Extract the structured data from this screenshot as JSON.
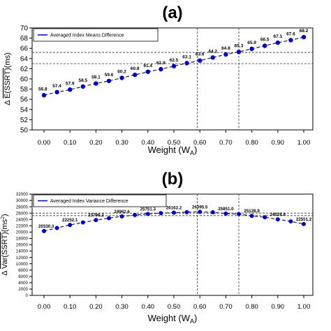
{
  "chart_data": [
    {
      "panel_label": "(a)",
      "type": "line",
      "legend": "Averaged Index Means Difference",
      "legend_placement": "top-left",
      "ylabel_parts": [
        "Δ",
        "E(SSRT)",
        "(ms)"
      ],
      "xlabel_parts": [
        "Weight (W",
        "A",
        ")"
      ],
      "xlim": [
        0,
        1
      ],
      "ylim": [
        50,
        70
      ],
      "x_ticks": [
        0.0,
        0.1,
        0.2,
        0.3,
        0.4,
        0.5,
        0.6,
        0.7,
        0.8,
        0.9,
        1.0
      ],
      "x_tick_labels": [
        "0.00",
        "0.10",
        "0.20",
        "0.30",
        "0.40",
        "0.50",
        "0.60",
        "0.70",
        "0.80",
        "0.90",
        "1.00"
      ],
      "y_ticks": [
        50,
        52,
        54,
        56,
        58,
        60,
        62,
        64,
        66,
        68,
        70
      ],
      "y_tick_labels": [
        "50",
        "52",
        "54",
        "56",
        "58",
        "60",
        "62",
        "64",
        "66",
        "68",
        "70"
      ],
      "x": [
        0.0,
        0.05,
        0.1,
        0.15,
        0.2,
        0.25,
        0.3,
        0.35,
        0.4,
        0.45,
        0.5,
        0.55,
        0.6,
        0.65,
        0.7,
        0.75,
        0.8,
        0.85,
        0.9,
        0.95,
        1.0
      ],
      "values": [
        56.8,
        57.4,
        57.9,
        58.5,
        59.1,
        59.6,
        60.2,
        60.8,
        61.4,
        61.9,
        62.5,
        63.1,
        63.6,
        64.2,
        64.8,
        65.3,
        65.9,
        66.5,
        67.1,
        67.6,
        68.2
      ],
      "labels": [
        "56.8",
        "57.4",
        "57.9",
        "58.5",
        "59.1",
        "59.6",
        "60.2",
        "60.8",
        "61.4",
        "61.9",
        "62.5",
        "63.1",
        "63.6",
        "64.2",
        "64.8",
        "65.3",
        "65.9",
        "66.5",
        "67.1",
        "67.6",
        "68.2"
      ],
      "reference_lines": {
        "vertical_x": [
          0.59,
          0.75
        ],
        "horizontal_y": [
          63.0,
          65.2
        ]
      },
      "series_color": "#0000cc"
    },
    {
      "panel_label": "(b)",
      "type": "line",
      "legend": "Averaged Index Variance  Difference",
      "legend_placement": "top-left",
      "ylabel_parts": [
        "Δ",
        "Var(SSRT)",
        "(ms",
        "2",
        ")"
      ],
      "xlabel_parts": [
        "Weight (W",
        "A",
        ")"
      ],
      "xlim": [
        0,
        1
      ],
      "ylim": [
        0,
        32000
      ],
      "x_ticks": [
        0.0,
        0.1,
        0.2,
        0.3,
        0.4,
        0.5,
        0.6,
        0.7,
        0.8,
        0.9,
        1.0
      ],
      "x_tick_labels": [
        "0.00",
        "0.10",
        "0.20",
        "0.30",
        "0.40",
        "0.50",
        "0.60",
        "0.70",
        "0.80",
        "0.90",
        "1.00"
      ],
      "y_ticks": [
        0,
        2000,
        4000,
        6000,
        8000,
        10000,
        12000,
        14000,
        16000,
        18000,
        20000,
        22000,
        24000,
        26000,
        28000,
        30000,
        32000
      ],
      "y_tick_labels": [
        "0",
        "2000",
        "4000",
        "6000",
        "8000",
        "10000",
        "12000",
        "14000",
        "16000",
        "18000",
        "20000",
        "22000",
        "24000",
        "26000",
        "28000",
        "30000",
        "32000"
      ],
      "x": [
        0.0,
        0.05,
        0.1,
        0.15,
        0.2,
        0.25,
        0.3,
        0.35,
        0.4,
        0.45,
        0.5,
        0.55,
        0.6,
        0.65,
        0.7,
        0.75,
        0.8,
        0.85,
        0.9,
        0.95,
        1.0
      ],
      "values": [
        20330.3,
        21300,
        22252.1,
        23050,
        23796.2,
        24400,
        24962.6,
        25400,
        25751.3,
        26000,
        26162.2,
        26300,
        26395.5,
        26250,
        25851.0,
        25700,
        25128.8,
        24700,
        24028.8,
        23400,
        22551.2
      ],
      "labels": [
        "20330.3",
        "",
        "22252.1",
        "",
        "23796.2",
        "",
        "24962.6",
        "",
        "25751.3",
        "",
        "26162.2",
        "",
        "26395.5",
        "",
        "25851.0",
        "",
        "25128.8",
        "",
        "24028.8",
        "",
        "22551.2"
      ],
      "reference_lines": {
        "vertical_x": [
          0.59,
          0.75
        ],
        "horizontal_y": [
          25200,
          26000
        ]
      },
      "series_color": "#0000cc"
    }
  ]
}
